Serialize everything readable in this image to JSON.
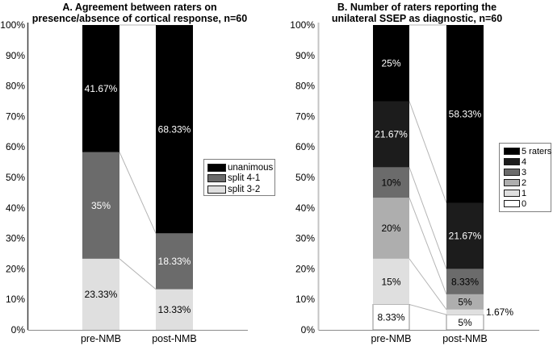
{
  "chart_data": [
    {
      "type": "bar",
      "stacked": true,
      "panel": "A",
      "title_lines": [
        "A. Agreement between raters on",
        "presence/absence of cortical response, n=60"
      ],
      "categories": [
        "pre-NMB",
        "post-NMB"
      ],
      "ylim": [
        0,
        100
      ],
      "yticks": [
        "100%",
        "90%",
        "80%",
        "70%",
        "60%",
        "50%",
        "40%",
        "30%",
        "20%",
        "10%",
        "0%"
      ],
      "grid": false,
      "legend_position": "inside-right-middle",
      "series": [
        {
          "name": "split 3-2",
          "color": "#dfdfdf",
          "label_color": "#000000",
          "values": [
            23.33,
            13.33
          ],
          "labels": [
            "23.33%",
            "13.33%"
          ]
        },
        {
          "name": "split 4-1",
          "color": "#6b6b6b",
          "label_color": "#ffffff",
          "values": [
            35,
            18.33
          ],
          "labels": [
            "35%",
            "18.33%"
          ]
        },
        {
          "name": "unanimous",
          "color": "#000000",
          "label_color": "#ffffff",
          "values": [
            41.67,
            68.33
          ],
          "labels": [
            "41.67%",
            "68.33%"
          ]
        }
      ]
    },
    {
      "type": "bar",
      "stacked": true,
      "panel": "B",
      "title_lines": [
        "B. Number of raters reporting the",
        "unilateral SSEP as diagnostic, n=60"
      ],
      "categories": [
        "pre-NMB",
        "post-NMB"
      ],
      "ylim": [
        0,
        100
      ],
      "yticks": [
        "100%",
        "90%",
        "80%",
        "70%",
        "60%",
        "50%",
        "40%",
        "30%",
        "20%",
        "10%",
        "0%"
      ],
      "grid": false,
      "legend_position": "inside-right-middle",
      "series": [
        {
          "name": "0",
          "color": "#ffffff",
          "border": "#8c8c8c",
          "label_color": "#000000",
          "values": [
            8.33,
            5
          ],
          "labels": [
            "8.33%",
            "5%"
          ]
        },
        {
          "name": "1",
          "color": "#dfdfdf",
          "label_color": "#000000",
          "values": [
            15,
            1.67
          ],
          "labels": [
            "15%",
            "1.67%"
          ],
          "label_outside": [
            false,
            true
          ]
        },
        {
          "name": "2",
          "color": "#aeaeae",
          "label_color": "#000000",
          "values": [
            20,
            5
          ],
          "labels": [
            "20%",
            "5%"
          ]
        },
        {
          "name": "3",
          "color": "#6b6b6b",
          "label_color": "#000000",
          "values": [
            10,
            8.33
          ],
          "labels": [
            "10%",
            "8.33%"
          ]
        },
        {
          "name": "4",
          "color": "#1c1c1c",
          "label_color": "#ffffff",
          "values": [
            21.67,
            21.67
          ],
          "labels": [
            "21.67%",
            "21.67%"
          ]
        },
        {
          "name": "5 raters",
          "color": "#000000",
          "label_color": "#ffffff",
          "values": [
            25,
            58.33
          ],
          "labels": [
            "25%",
            "58.33%"
          ]
        }
      ]
    }
  ],
  "style_colors": {
    "connector_line": "#b5b5b5",
    "baseline_axis": "#8c8c8c",
    "left_y_axis": "#404040",
    "right_y_axis": "#c4c4c4",
    "text": "#000000"
  }
}
